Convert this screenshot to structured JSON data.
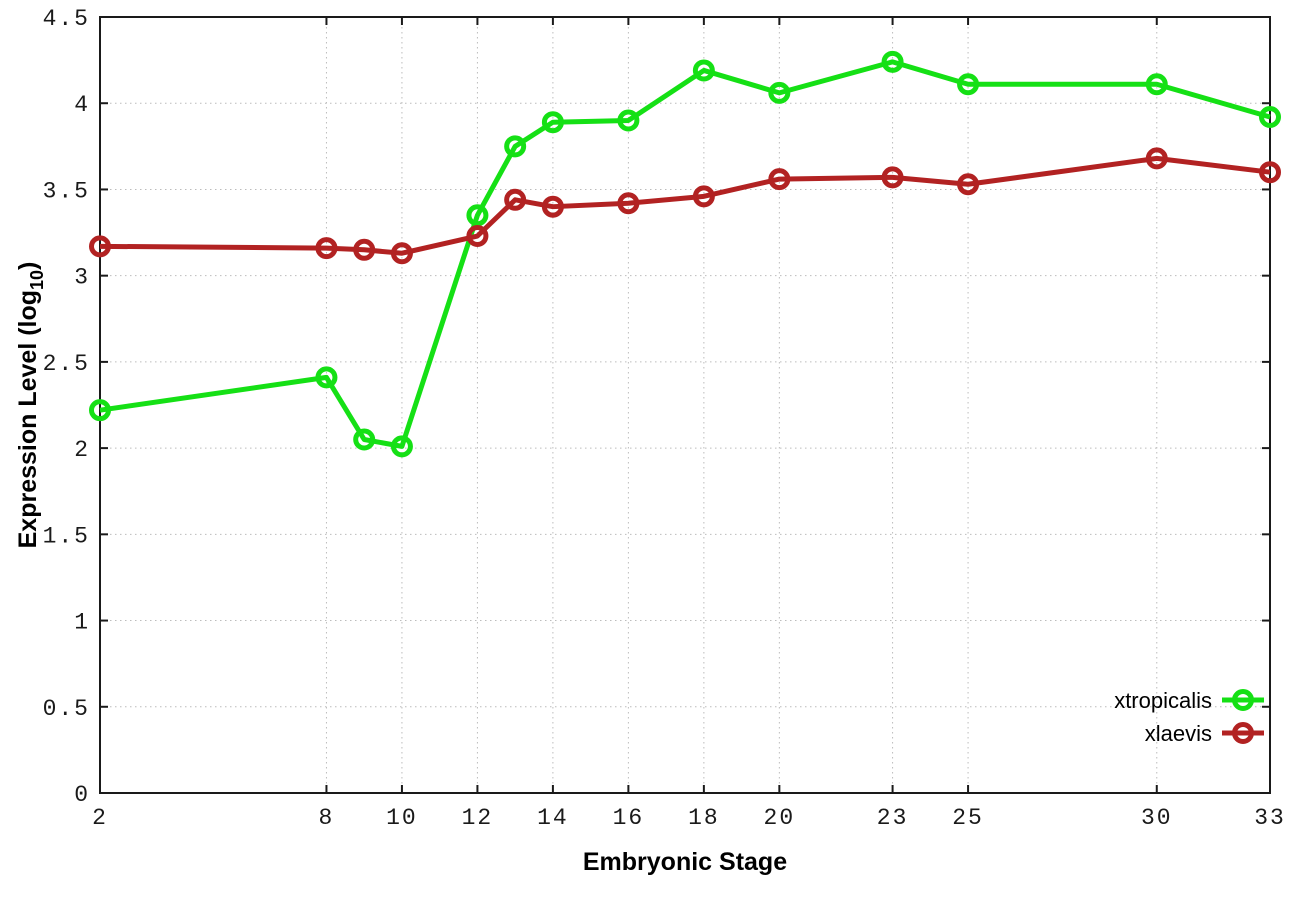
{
  "chart_data": {
    "type": "line",
    "title": "",
    "xlabel": "Embryonic Stage",
    "ylabel": "Expression Level (log10)",
    "ylabel_parts": [
      "Expression Level (log",
      "10",
      ")"
    ],
    "xlim": [
      2,
      33
    ],
    "ylim": [
      0,
      4.5
    ],
    "grid": true,
    "grid_style": "dotted",
    "legend_position": "bottom-right-inside",
    "marker": "open-circle",
    "x": [
      2,
      8,
      9,
      10,
      12,
      13,
      14,
      16,
      18,
      20,
      23,
      25,
      30,
      33
    ],
    "x_ticks": [
      2,
      8,
      10,
      12,
      14,
      16,
      18,
      20,
      23,
      25,
      30,
      33
    ],
    "x_tick_labels": [
      "2",
      "8",
      "10",
      "12",
      "14",
      "16",
      "18",
      "20",
      "23",
      "25",
      "30",
      "33"
    ],
    "y_ticks": [
      0,
      0.5,
      1,
      1.5,
      2,
      2.5,
      3,
      3.5,
      4,
      4.5
    ],
    "y_tick_labels": [
      "0",
      "0.5",
      "1",
      "1.5",
      "2",
      "2.5",
      "3",
      "3.5",
      "4",
      "4.5"
    ],
    "series": [
      {
        "name": "xtropicalis",
        "color": "#15e015",
        "values": [
          2.22,
          2.41,
          2.05,
          2.01,
          3.35,
          3.75,
          3.89,
          3.9,
          4.19,
          4.06,
          4.24,
          4.11,
          4.11,
          3.92
        ]
      },
      {
        "name": "xlaevis",
        "color": "#b22222",
        "values": [
          3.17,
          3.16,
          3.15,
          3.13,
          3.23,
          3.44,
          3.4,
          3.42,
          3.46,
          3.56,
          3.57,
          3.53,
          3.68,
          3.6
        ]
      }
    ]
  }
}
